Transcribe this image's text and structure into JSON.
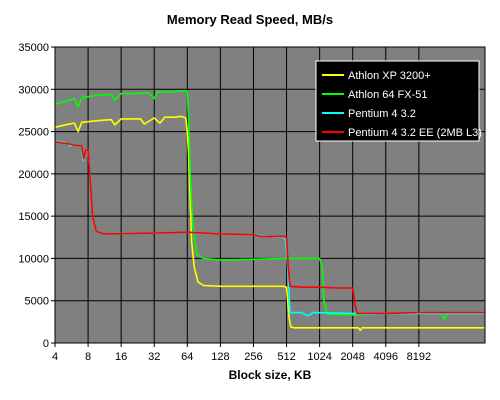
{
  "chart_data": {
    "type": "line",
    "title": "Memory Read Speed, MB/s",
    "xlabel": "Block size, KB",
    "ylabel": "",
    "x_scale": "log2",
    "xlim": [
      4,
      32768
    ],
    "ylim": [
      0,
      35000
    ],
    "x_ticks": [
      4,
      8,
      16,
      32,
      64,
      128,
      256,
      512,
      1024,
      2048,
      4096,
      8192
    ],
    "x_tick_labels": [
      "4",
      "8",
      "16",
      "32",
      "64",
      "128",
      "256",
      "512",
      "1024",
      "2048",
      "4096",
      "8192"
    ],
    "y_ticks": [
      0,
      5000,
      10000,
      15000,
      20000,
      25000,
      30000,
      35000
    ],
    "y_tick_labels": [
      "0",
      "5000",
      "10000",
      "15000",
      "20000",
      "25000",
      "30000",
      "35000"
    ],
    "grid": true,
    "legend_position": "top-right",
    "background_color": "#808080",
    "series": [
      {
        "name": "Athlon XP 3200+",
        "color": "#ffff00",
        "points": [
          [
            4,
            25500
          ],
          [
            5,
            25800
          ],
          [
            6,
            26000
          ],
          [
            6.5,
            25000
          ],
          [
            7,
            26100
          ],
          [
            10,
            26300
          ],
          [
            13,
            26400
          ],
          [
            14,
            25800
          ],
          [
            16,
            26500
          ],
          [
            24,
            26500
          ],
          [
            26,
            25900
          ],
          [
            32,
            26600
          ],
          [
            36,
            26000
          ],
          [
            40,
            26700
          ],
          [
            50,
            26700
          ],
          [
            56,
            26800
          ],
          [
            62,
            26600
          ],
          [
            64,
            25000
          ],
          [
            66,
            22000
          ],
          [
            68,
            17000
          ],
          [
            70,
            12000
          ],
          [
            74,
            9000
          ],
          [
            80,
            7200
          ],
          [
            90,
            6800
          ],
          [
            128,
            6700
          ],
          [
            256,
            6700
          ],
          [
            480,
            6700
          ],
          [
            512,
            6600
          ],
          [
            540,
            3000
          ],
          [
            560,
            1900
          ],
          [
            600,
            1800
          ],
          [
            1024,
            1800
          ],
          [
            2048,
            1800
          ],
          [
            2300,
            1800
          ],
          [
            2400,
            1500
          ],
          [
            2500,
            1800
          ],
          [
            4096,
            1800
          ],
          [
            8192,
            1800
          ],
          [
            32768,
            1800
          ]
        ]
      },
      {
        "name": "Athlon 64 FX-51",
        "color": "#00ff00",
        "points": [
          [
            4,
            28200
          ],
          [
            5,
            28600
          ],
          [
            6,
            28900
          ],
          [
            6.5,
            27900
          ],
          [
            7,
            29000
          ],
          [
            10,
            29300
          ],
          [
            13,
            29400
          ],
          [
            14,
            28700
          ],
          [
            16,
            29500
          ],
          [
            24,
            29500
          ],
          [
            28,
            29600
          ],
          [
            32,
            28900
          ],
          [
            34,
            29700
          ],
          [
            48,
            29700
          ],
          [
            56,
            29800
          ],
          [
            64,
            29800
          ],
          [
            66,
            26000
          ],
          [
            68,
            20000
          ],
          [
            72,
            14000
          ],
          [
            78,
            10500
          ],
          [
            90,
            10000
          ],
          [
            128,
            9800
          ],
          [
            256,
            9900
          ],
          [
            512,
            10000
          ],
          [
            1024,
            10000
          ],
          [
            1080,
            9000
          ],
          [
            1120,
            5000
          ],
          [
            1200,
            3400
          ],
          [
            2048,
            3300
          ],
          [
            4096,
            3500
          ],
          [
            8192,
            3600
          ],
          [
            13000,
            3600
          ],
          [
            14000,
            2800
          ],
          [
            15000,
            3600
          ],
          [
            32768,
            3600
          ]
        ]
      },
      {
        "name": "Pentium 4 3.2",
        "color": "#00ffff",
        "points": [
          [
            4,
            23900
          ],
          [
            5,
            23700
          ],
          [
            5.5,
            23300
          ],
          [
            6,
            23500
          ],
          [
            7,
            23200
          ],
          [
            7.2,
            21600
          ],
          [
            7.5,
            22700
          ],
          [
            8,
            22900
          ],
          [
            8.3,
            20000
          ],
          [
            8.8,
            15000
          ],
          [
            9.5,
            13200
          ],
          [
            11,
            12900
          ],
          [
            32,
            13000
          ],
          [
            64,
            13100
          ],
          [
            128,
            12900
          ],
          [
            256,
            12800
          ],
          [
            300,
            12700
          ],
          [
            480,
            12500
          ],
          [
            500,
            12200
          ],
          [
            512,
            11000
          ],
          [
            530,
            8000
          ],
          [
            550,
            3600
          ],
          [
            700,
            3600
          ],
          [
            800,
            3200
          ],
          [
            900,
            3600
          ],
          [
            2048,
            3500
          ],
          [
            3000,
            3400
          ],
          [
            4096,
            3500
          ],
          [
            8192,
            3500
          ],
          [
            32768,
            3500
          ]
        ]
      },
      {
        "name": "Pentium 4 3.2 EE (2MB L3)",
        "color": "#ff0000",
        "points": [
          [
            4,
            23800
          ],
          [
            5,
            23600
          ],
          [
            6,
            23400
          ],
          [
            7,
            23300
          ],
          [
            7.3,
            21800
          ],
          [
            7.6,
            22800
          ],
          [
            8,
            22900
          ],
          [
            8.3,
            20000
          ],
          [
            8.8,
            15000
          ],
          [
            9.5,
            13200
          ],
          [
            11,
            12900
          ],
          [
            32,
            13000
          ],
          [
            64,
            13100
          ],
          [
            128,
            12900
          ],
          [
            256,
            12800
          ],
          [
            300,
            12600
          ],
          [
            480,
            12600
          ],
          [
            512,
            12500
          ],
          [
            530,
            9000
          ],
          [
            550,
            6700
          ],
          [
            700,
            6600
          ],
          [
            1024,
            6600
          ],
          [
            1500,
            6500
          ],
          [
            2048,
            6500
          ],
          [
            2150,
            4500
          ],
          [
            2250,
            3500
          ],
          [
            4096,
            3500
          ],
          [
            8192,
            3600
          ],
          [
            32768,
            3600
          ]
        ]
      }
    ]
  }
}
